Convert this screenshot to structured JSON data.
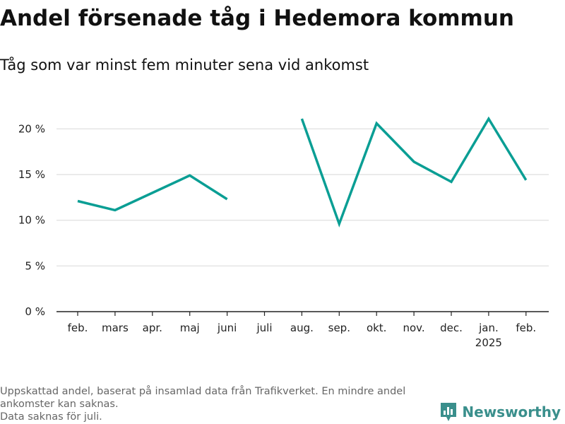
{
  "title": "Andel försenade tåg i Hedemora kommun",
  "subtitle": "Tåg som var minst fem minuter sena vid ankomst",
  "notes": [
    "Uppskattad andel, baserat på insamlad data från Trafikverket. En mindre andel ankomster kan saknas.",
    "Data saknas för juli."
  ],
  "brand": {
    "name": "Newsworthy",
    "color": "#3a8f8c"
  },
  "chart_data": {
    "type": "line",
    "categories": [
      "feb.",
      "mars",
      "apr.",
      "maj",
      "juni",
      "juli",
      "aug.",
      "sep.",
      "okt.",
      "nov.",
      "dec.",
      "jan.",
      "feb."
    ],
    "category_sublabels": [
      "",
      "",
      "",
      "",
      "",
      "",
      "",
      "",
      "",
      "",
      "",
      "2025",
      ""
    ],
    "series": [
      {
        "values": [
          12.1,
          11.1,
          13.0,
          14.9,
          12.3,
          null,
          21.1,
          9.6,
          20.6,
          16.4,
          14.2,
          21.1,
          14.4
        ],
        "color": "#0a9e94"
      }
    ],
    "yticks": [
      0,
      5,
      10,
      15,
      20
    ],
    "ytick_labels": [
      "0 %",
      "5 %",
      "10 %",
      "15 %",
      "20 %"
    ],
    "ylim": [
      0,
      22.5
    ],
    "grid": true,
    "xlabel": "",
    "ylabel": ""
  }
}
